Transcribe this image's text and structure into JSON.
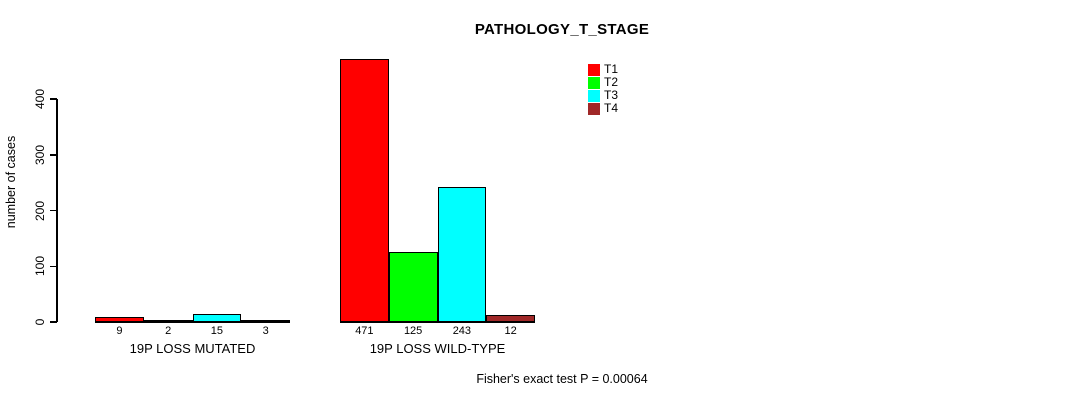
{
  "title": "PATHOLOGY_T_STAGE",
  "footer": "Fisher's exact test P = 0.00064",
  "chart_data": {
    "type": "bar",
    "title": "PATHOLOGY_T_STAGE",
    "xlabel": "",
    "ylabel": "number of cases",
    "ylim": [
      0,
      400
    ],
    "yticks": [
      0,
      100,
      200,
      300,
      400
    ],
    "grid": false,
    "legend_position": "top-right-inside",
    "categories": [
      "19P LOSS MUTATED",
      "19P LOSS WILD-TYPE"
    ],
    "series": [
      {
        "name": "T1",
        "color": "#FF0000",
        "values": [
          9,
          471
        ]
      },
      {
        "name": "T2",
        "color": "#00FF00",
        "values": [
          2,
          125
        ]
      },
      {
        "name": "T3",
        "color": "#00FFFF",
        "values": [
          15,
          243
        ]
      },
      {
        "name": "T4",
        "color": "#A02828",
        "values": [
          3,
          12
        ]
      }
    ],
    "bar_value_labels": [
      [
        9,
        2,
        15,
        3
      ],
      [
        471,
        125,
        243,
        12
      ]
    ],
    "annotation": "Fisher's exact test P = 0.00064",
    "axis_color": "#000000",
    "background_color": "#FFFFFF"
  }
}
